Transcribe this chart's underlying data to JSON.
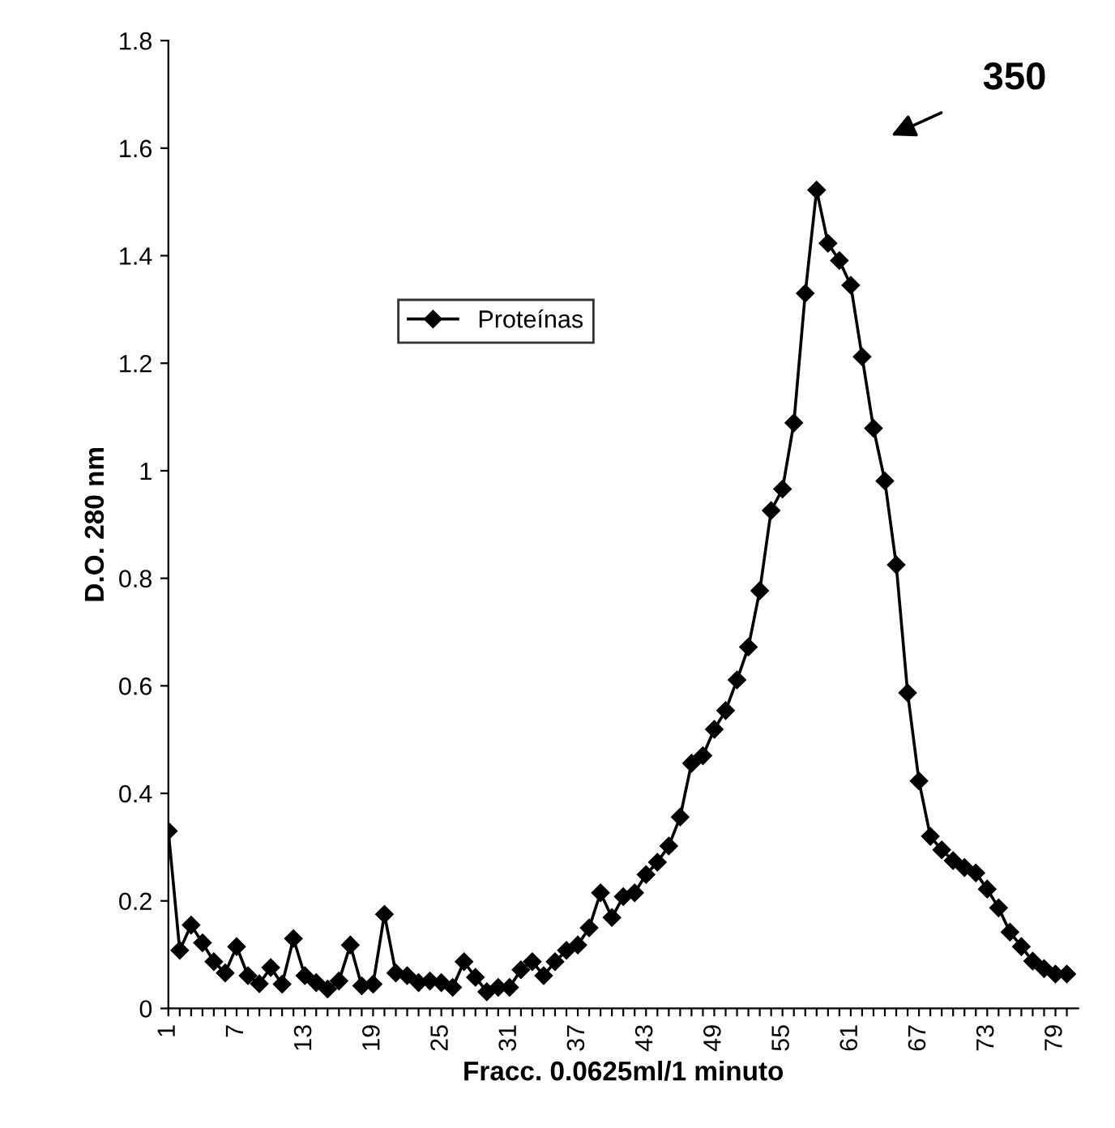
{
  "chart_data": {
    "type": "line",
    "xlabel": "Fracc. 0.0625ml/1 minuto",
    "ylabel": "D.O. 280 nm",
    "categories": [
      "1",
      null,
      null,
      null,
      null,
      null,
      "7",
      null,
      null,
      null,
      null,
      null,
      "13",
      null,
      null,
      null,
      null,
      null,
      "19",
      null,
      null,
      null,
      null,
      null,
      "25",
      null,
      null,
      null,
      null,
      null,
      "31",
      null,
      null,
      null,
      null,
      null,
      "37",
      null,
      null,
      null,
      null,
      null,
      "43",
      null,
      null,
      null,
      null,
      null,
      "49",
      null,
      null,
      null,
      null,
      null,
      "55",
      null,
      null,
      null,
      null,
      null,
      "61",
      null,
      null,
      null,
      null,
      null,
      "67",
      null,
      null,
      null,
      null,
      null,
      "73",
      null,
      null,
      null,
      null,
      null,
      "79",
      null
    ],
    "series": [
      {
        "name": "Proteínas",
        "color": "#000000",
        "values": [
          0.33,
          0.108,
          0.155,
          0.122,
          0.087,
          0.066,
          0.115,
          0.061,
          0.046,
          0.076,
          0.045,
          0.13,
          0.061,
          0.048,
          0.036,
          0.051,
          0.118,
          0.042,
          0.045,
          0.175,
          0.066,
          0.061,
          0.048,
          0.051,
          0.048,
          0.039,
          0.087,
          0.058,
          0.031,
          0.039,
          0.039,
          0.072,
          0.087,
          0.061,
          0.087,
          0.108,
          0.118,
          0.15,
          0.215,
          0.169,
          0.208,
          0.215,
          0.249,
          0.272,
          0.302,
          0.356,
          0.456,
          0.47,
          0.519,
          0.554,
          0.611,
          0.672,
          0.777,
          0.926,
          0.966,
          1.089,
          1.33,
          1.522,
          1.423,
          1.391,
          1.345,
          1.212,
          1.079,
          0.981,
          0.825,
          0.587,
          0.423,
          0.32,
          0.295,
          0.275,
          0.262,
          0.252,
          0.222,
          0.187,
          0.142,
          0.115,
          0.088,
          0.074,
          0.064,
          0.064
        ]
      }
    ],
    "ylim": [
      0,
      1.8
    ],
    "yticks": [
      0,
      0.2,
      0.4,
      0.6,
      0.8,
      1,
      1.2,
      1.4,
      1.6,
      1.8
    ],
    "grid": false,
    "legend": "top",
    "marker": "diamond",
    "line_style": "solid",
    "annotations": [
      "350"
    ]
  }
}
